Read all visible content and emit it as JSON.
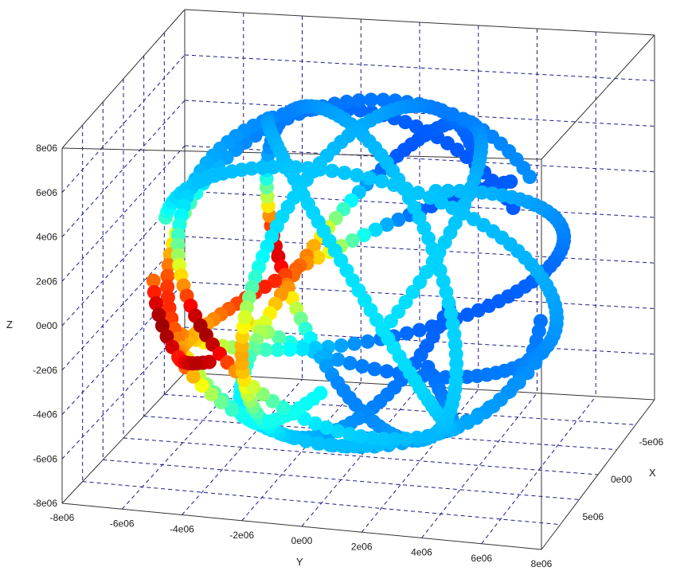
{
  "chart_data": {
    "type": "scatter",
    "projection": "3d",
    "title": "",
    "xlabel": "X",
    "ylabel": "Y",
    "zlabel": "Z",
    "xlim": [
      -8000000,
      8000000
    ],
    "ylim": [
      -8000000,
      8000000
    ],
    "zlim": [
      -8000000,
      8000000
    ],
    "grid": true,
    "colormap": "jet",
    "x_ticks": [
      "-5e06",
      "0e00",
      "5e06"
    ],
    "y_ticks": [
      "-8e06",
      "-6e06",
      "-4e06",
      "-2e06",
      "0e00",
      "2e06",
      "4e06",
      "6e06",
      "8e06"
    ],
    "z_ticks": [
      "8e06",
      "6e06",
      "4e06",
      "2e06",
      "0e00",
      "-2e06",
      "-4e06",
      "-6e06",
      "-8e06"
    ],
    "colors": {
      "frame": "#333333",
      "grid": "#1a1a8a",
      "background": "#ffffff"
    },
    "point_count": 704
  }
}
